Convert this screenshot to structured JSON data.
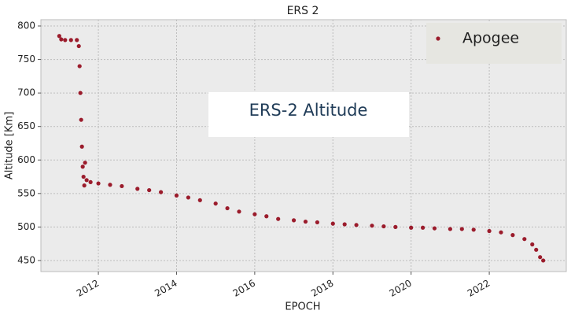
{
  "chart_data": {
    "type": "scatter",
    "title": "ERS 2",
    "xlabel": "EPOCH",
    "ylabel": "Altitude [Km]",
    "annotation": "ERS-2 Altitude",
    "legend": "upper right",
    "grid": true,
    "xlim": [
      2010.53,
      2023.97
    ],
    "ylim": [
      433.5,
      809.4
    ],
    "xticks": [
      2012,
      2014,
      2016,
      2018,
      2020,
      2022
    ],
    "yticks": [
      450,
      500,
      550,
      600,
      650,
      700,
      750,
      800
    ],
    "series": [
      {
        "name": "Apogee",
        "color": "#9b1c2c",
        "x": [
          2011.0,
          2011.05,
          2011.15,
          2011.3,
          2011.45,
          2011.5,
          2011.52,
          2011.54,
          2011.56,
          2011.58,
          2011.6,
          2011.62,
          2011.64,
          2011.66,
          2011.7,
          2011.8,
          2012.0,
          2012.3,
          2012.6,
          2013.0,
          2013.3,
          2013.6,
          2014.0,
          2014.3,
          2014.6,
          2015.0,
          2015.3,
          2015.6,
          2016.0,
          2016.3,
          2016.6,
          2017.0,
          2017.3,
          2017.6,
          2018.0,
          2018.3,
          2018.6,
          2019.0,
          2019.3,
          2019.6,
          2020.0,
          2020.3,
          2020.6,
          2021.0,
          2021.3,
          2021.6,
          2022.0,
          2022.3,
          2022.6,
          2022.9,
          2023.1,
          2023.2,
          2023.3,
          2023.38
        ],
        "values": [
          785,
          780,
          779,
          779,
          779,
          770,
          740,
          700,
          660,
          620,
          590,
          575,
          562,
          596,
          570,
          567,
          565,
          563,
          561,
          557,
          555,
          552,
          547,
          544,
          540,
          535,
          528,
          523,
          519,
          516,
          512,
          510,
          508,
          507,
          505,
          504,
          503,
          502,
          501,
          500,
          499,
          499,
          498,
          497,
          497,
          496,
          494,
          492,
          488,
          482,
          474,
          466,
          455,
          450
        ]
      }
    ]
  }
}
